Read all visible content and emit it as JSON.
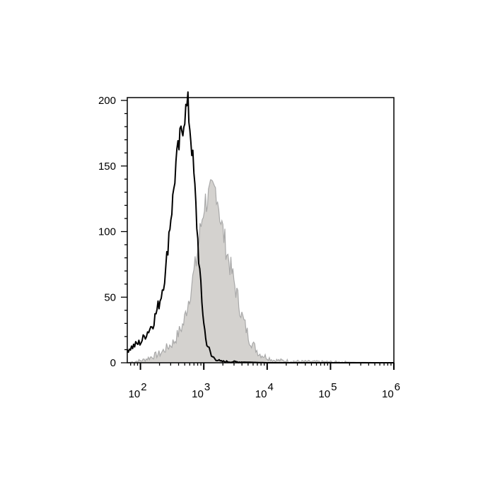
{
  "chart_data": {
    "type": "area",
    "title": "",
    "xlabel": "",
    "ylabel": "",
    "x_scale": "log",
    "xlim": [
      62,
      1000000
    ],
    "ylim": [
      0,
      200
    ],
    "grid": false,
    "legend": "none",
    "y_ticks": [
      0,
      50,
      100,
      150,
      200
    ],
    "y_tick_labels": [
      "0",
      "50",
      "100",
      "150",
      "200"
    ],
    "x_ticks": [
      100,
      1000,
      10000,
      100000,
      1000000
    ],
    "x_tick_labels": [
      {
        "base": "10",
        "exp": "2"
      },
      {
        "base": "10",
        "exp": "3"
      },
      {
        "base": "10",
        "exp": "4"
      },
      {
        "base": "10",
        "exp": "5"
      },
      {
        "base": "10",
        "exp": "6"
      }
    ],
    "series": [
      {
        "style": "filled",
        "color": "#a9a9a9",
        "fill": "#d4d2cf",
        "x": [
          62,
          110,
          204,
          339,
          479,
          617,
          759,
          871,
          1023,
          1230,
          1585,
          1862,
          2399,
          3090,
          3981,
          5248,
          7413,
          12589,
          31623,
          1000000
        ],
        "y": [
          0,
          2,
          7,
          16,
          30,
          55,
          77,
          99,
          122,
          127,
          133,
          108,
          81,
          59,
          36,
          18,
          7,
          2,
          1,
          0
        ]
      },
      {
        "style": "line",
        "color": "#000000",
        "x": [
          62,
          102,
          158,
          204,
          251,
          282,
          324,
          363,
          437,
          501,
          562,
          646,
          724,
          832,
          933,
          1072,
          1318,
          1820,
          10000,
          1000000
        ],
        "y": [
          10,
          16,
          30,
          48,
          70,
          99,
          124,
          151,
          174,
          190,
          196,
          165,
          131,
          81,
          45,
          18,
          5,
          1,
          0,
          0
        ]
      }
    ]
  }
}
